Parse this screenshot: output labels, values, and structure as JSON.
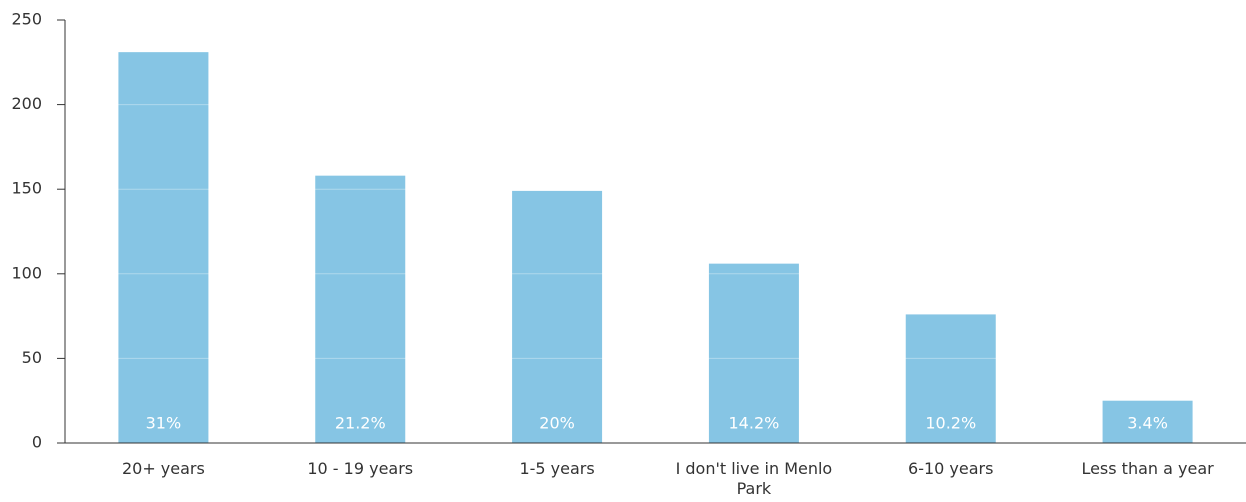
{
  "chart_data": {
    "type": "bar",
    "categories": [
      "20+ years",
      "10 - 19 years",
      "1-5 years",
      "I don't live in Menlo Park",
      "6-10 years",
      "Less than a year"
    ],
    "values": [
      231,
      158,
      149,
      106,
      76,
      25
    ],
    "data_labels": [
      "31%",
      "21.2%",
      "20%",
      "14.2%",
      "10.2%",
      "3.4%"
    ],
    "color": "#86c5e4",
    "ylim": [
      0,
      250
    ],
    "yticks": [
      0,
      50,
      100,
      150,
      200,
      250
    ],
    "grid": true
  }
}
